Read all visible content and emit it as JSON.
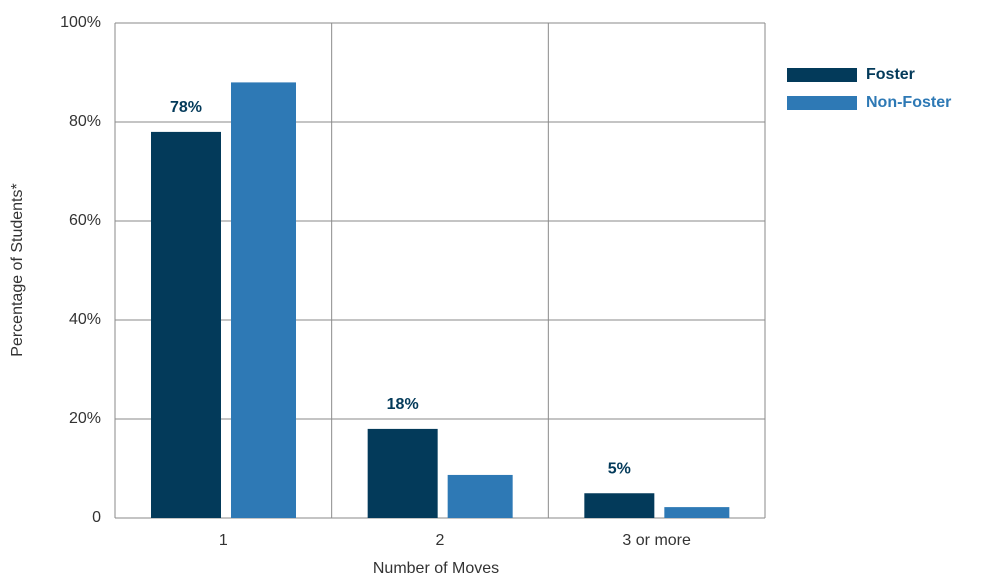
{
  "chart_data": {
    "type": "bar",
    "x_label": "Number of Moves",
    "y_label": "Percentage of Students*",
    "categories": [
      "1",
      "2",
      "3 or more"
    ],
    "series": [
      {
        "name": "Foster",
        "color": "#033a5a",
        "values": [
          78,
          18,
          5
        ],
        "value_labels": [
          "78%",
          "18%",
          "5%"
        ]
      },
      {
        "name": "Non-Foster",
        "color": "#2e79b5",
        "values": [
          88,
          8.7,
          2.2
        ]
      }
    ],
    "ylim": [
      0,
      100
    ],
    "yticks": [
      0,
      {
        "value": 20,
        "label": "20%"
      },
      {
        "value": 40,
        "label": "40%"
      },
      {
        "value": 60,
        "label": "60%"
      },
      {
        "value": 80,
        "label": "80%"
      },
      {
        "value": 100,
        "label": "100%"
      }
    ],
    "grid": true,
    "legend": "right"
  }
}
